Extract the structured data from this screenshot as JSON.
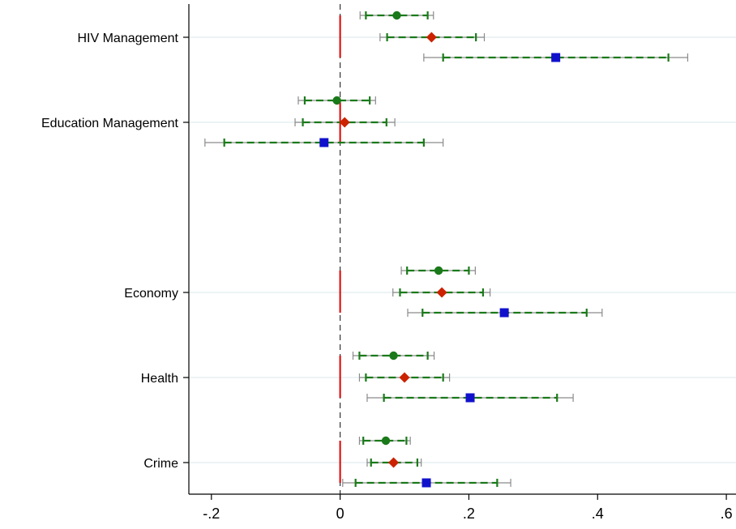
{
  "chart_data": {
    "type": "coefficient-plot",
    "title": "",
    "xlabel": "",
    "ylabel": "",
    "xlim": [
      -0.235,
      0.615
    ],
    "xticks": [
      -0.2,
      0,
      0.2,
      0.4,
      0.6
    ],
    "xtick_labels": [
      "-.2",
      "0",
      ".2",
      ".4",
      ".6"
    ],
    "reference_line": 0,
    "categories": [
      "HIV Management",
      "Education Management",
      "Economy",
      "Health",
      "Crime"
    ],
    "series": [
      {
        "marker": "circle",
        "color": "#1a7a1a",
        "estimates": [
          0.088,
          -0.005,
          0.153,
          0.083,
          0.071
        ],
        "ci_inner": [
          [
            0.04,
            0.136
          ],
          [
            -0.055,
            0.046
          ],
          [
            0.104,
            0.2
          ],
          [
            0.03,
            0.136
          ],
          [
            0.036,
            0.103
          ]
        ],
        "ci_outer": [
          [
            0.031,
            0.145
          ],
          [
            -0.065,
            0.055
          ],
          [
            0.095,
            0.21
          ],
          [
            0.02,
            0.146
          ],
          [
            0.03,
            0.109
          ]
        ]
      },
      {
        "marker": "diamond",
        "color": "#cc2200",
        "estimates": [
          0.142,
          0.007,
          0.158,
          0.1,
          0.083
        ],
        "ci_inner": [
          [
            0.073,
            0.211
          ],
          [
            -0.058,
            0.072
          ],
          [
            0.093,
            0.222
          ],
          [
            0.04,
            0.16
          ],
          [
            0.048,
            0.12
          ]
        ],
        "ci_outer": [
          [
            0.062,
            0.224
          ],
          [
            -0.07,
            0.085
          ],
          [
            0.082,
            0.233
          ],
          [
            0.03,
            0.17
          ],
          [
            0.042,
            0.126
          ]
        ]
      },
      {
        "marker": "square",
        "color": "#1111cc",
        "estimates": [
          0.335,
          -0.025,
          0.255,
          0.202,
          0.134
        ],
        "ci_inner": [
          [
            0.16,
            0.51
          ],
          [
            -0.18,
            0.13
          ],
          [
            0.128,
            0.383
          ],
          [
            0.068,
            0.337
          ],
          [
            0.024,
            0.244
          ]
        ],
        "ci_outer": [
          [
            0.13,
            0.54
          ],
          [
            -0.21,
            0.16
          ],
          [
            0.105,
            0.407
          ],
          [
            0.042,
            0.362
          ],
          [
            0.004,
            0.265
          ]
        ]
      }
    ],
    "colors": {
      "inner_ci": "#1a7a1a",
      "outer_ci": "#8a8a8a",
      "zero_marker": "#dd0000",
      "category_line": "#e6eff1",
      "axis": "#000000"
    }
  }
}
